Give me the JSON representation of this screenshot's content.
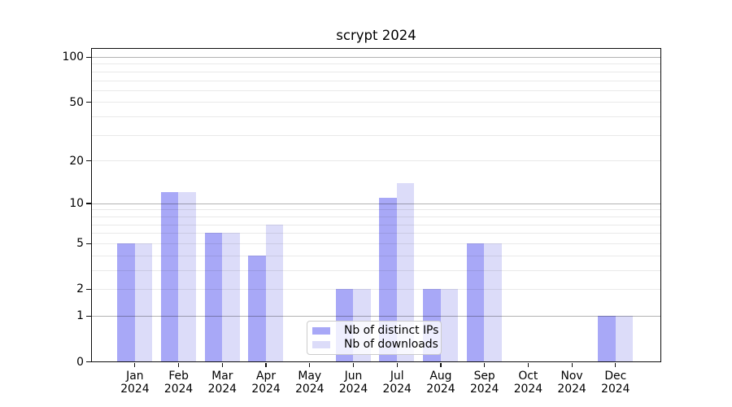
{
  "chart_data": {
    "type": "bar",
    "title": "scrypt 2024",
    "categories": [
      "Jan",
      "Feb",
      "Mar",
      "Apr",
      "May",
      "Jun",
      "Jul",
      "Aug",
      "Sep",
      "Oct",
      "Nov",
      "Dec"
    ],
    "category_year": "2024",
    "series": [
      {
        "name": "Nb of distinct IPs",
        "color": "#a8a8f7",
        "values": [
          5,
          12,
          6,
          4,
          0,
          2,
          11,
          2,
          5,
          0,
          0,
          1
        ]
      },
      {
        "name": "Nb of downloads",
        "color": "#dcdcf9",
        "values": [
          5,
          12,
          6,
          7,
          0,
          2,
          14,
          2,
          5,
          0,
          0,
          1
        ]
      }
    ],
    "yscale": "log1p",
    "ylim": [
      0,
      113
    ],
    "yticks": [
      0,
      1,
      2,
      5,
      10,
      20,
      50,
      100
    ],
    "major_gridlines": [
      1,
      10,
      100
    ],
    "minor_gridlines": [
      2,
      3,
      4,
      5,
      6,
      7,
      8,
      9,
      20,
      30,
      40,
      50,
      60,
      70,
      80,
      90
    ],
    "grid": true,
    "legend_position": "lower center",
    "colors": {
      "major_grid": "rgba(0,0,0,0.30)",
      "minor_grid": "rgba(0,0,0,0.085)",
      "spine": "#0d0d0d",
      "background": "#ffffff"
    }
  }
}
